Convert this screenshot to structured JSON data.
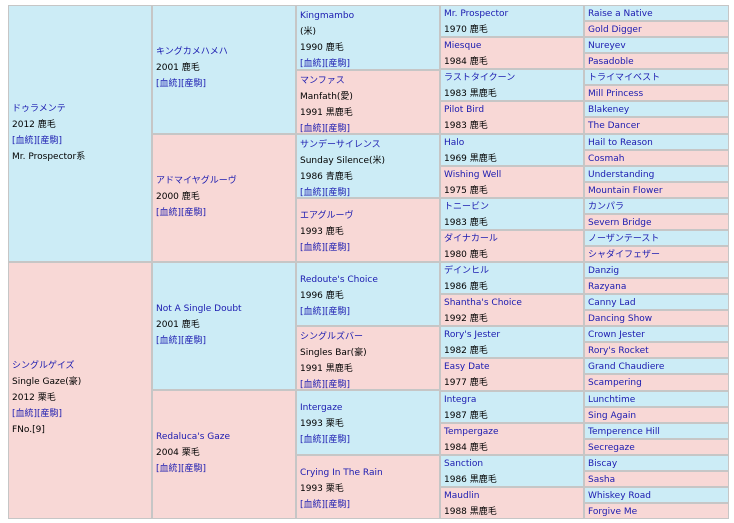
{
  "pedigree": {
    "subject": {
      "sire": {
        "name": "ドゥラメンテ",
        "year": "2012 鹿毛",
        "links": "[血統][産駒]",
        "line": "Mr. Prospector系"
      },
      "dam": {
        "name": "シングルゲイズ",
        "name_en": "Single Gaze(豪)",
        "year": "2012 栗毛",
        "links": "[血統][産駒]",
        "fno": "FNo.[9]"
      }
    },
    "gen2": [
      {
        "name": "キングカメハメハ",
        "year": "2001 鹿毛",
        "links": "[血統][産駒]"
      },
      {
        "name": "アドマイヤグルーヴ",
        "year": "2000 鹿毛",
        "links": "[血統][産駒]"
      },
      {
        "name": "Not A Single Doubt",
        "year": "2001 鹿毛",
        "links": "[血統][産駒]"
      },
      {
        "name": "Redaluca's Gaze",
        "year": "2004 栗毛",
        "links": "[血統][産駒]"
      }
    ],
    "gen3": [
      {
        "name": "Kingmambo",
        "sub": "(米)",
        "year": "1990 鹿毛",
        "links": "[血統][産駒]"
      },
      {
        "name": "マンファス",
        "sub": "Manfath(愛)",
        "year": "1991 黒鹿毛",
        "links": "[血統][産駒]"
      },
      {
        "name": "サンデーサイレンス",
        "sub": "Sunday Silence(米)",
        "year": "1986 青鹿毛",
        "links": "[血統][産駒]"
      },
      {
        "name": "エアグルーヴ",
        "sub": "",
        "year": "1993 鹿毛",
        "links": "[血統][産駒]"
      },
      {
        "name": "Redoute's Choice",
        "sub": "",
        "year": "1996 鹿毛",
        "links": "[血統][産駒]"
      },
      {
        "name": "シングルズバー",
        "sub": "Singles Bar(豪)",
        "year": "1991 黒鹿毛",
        "links": "[血統][産駒]"
      },
      {
        "name": "Intergaze",
        "sub": "",
        "year": "1993 栗毛",
        "links": "[血統][産駒]"
      },
      {
        "name": "Crying In The Rain",
        "sub": "",
        "year": "1993 栗毛",
        "links": "[血統][産駒]"
      }
    ],
    "gen4": [
      {
        "name": "Mr. Prospector",
        "year": "1970 鹿毛"
      },
      {
        "name": "Miesque",
        "year": "1984 鹿毛"
      },
      {
        "name": "ラストタイクーン",
        "year": "1983 黒鹿毛"
      },
      {
        "name": "Pilot Bird",
        "year": "1983 鹿毛"
      },
      {
        "name": "Halo",
        "year": "1969 黒鹿毛"
      },
      {
        "name": "Wishing Well",
        "year": "1975 鹿毛"
      },
      {
        "name": "トニービン",
        "year": "1983 鹿毛"
      },
      {
        "name": "ダイナカール",
        "year": "1980 鹿毛"
      },
      {
        "name": "デインヒル",
        "year": "1986 鹿毛"
      },
      {
        "name": "Shantha's Choice",
        "year": "1992 鹿毛"
      },
      {
        "name": "Rory's Jester",
        "year": "1982 鹿毛"
      },
      {
        "name": "Easy Date",
        "year": "1977 鹿毛"
      },
      {
        "name": "Integra",
        "year": "1987 鹿毛"
      },
      {
        "name": "Tempergaze",
        "year": "1984 鹿毛"
      },
      {
        "name": "Sanction",
        "year": "1986 黒鹿毛"
      },
      {
        "name": "Maudlin",
        "year": "1988 黒鹿毛"
      }
    ],
    "gen5": [
      "Raise a Native",
      "Gold Digger",
      "Nureyev",
      "Pasadoble",
      "トライマイベスト",
      "Mill Princess",
      "Blakeney",
      "The Dancer",
      "Hail to Reason",
      "Cosmah",
      "Understanding",
      "Mountain Flower",
      "カンパラ",
      "Severn Bridge",
      "ノーザンテースト",
      "シャダイフェザー",
      "Danzig",
      "Razyana",
      "Canny Lad",
      "Dancing Show",
      "Crown Jester",
      "Rory's Rocket",
      "Grand Chaudiere",
      "Scampering",
      "Lunchtime",
      "Sing Again",
      "Temperence Hill",
      "Secregaze",
      "Biscay",
      "Sasha",
      "Whiskey Road",
      "Forgive Me"
    ]
  },
  "colors": {
    "male_bg": "#ccecf6",
    "female_bg": "#f8d8d6",
    "link": "#1a1ab0",
    "border": "#c6c6c6"
  }
}
